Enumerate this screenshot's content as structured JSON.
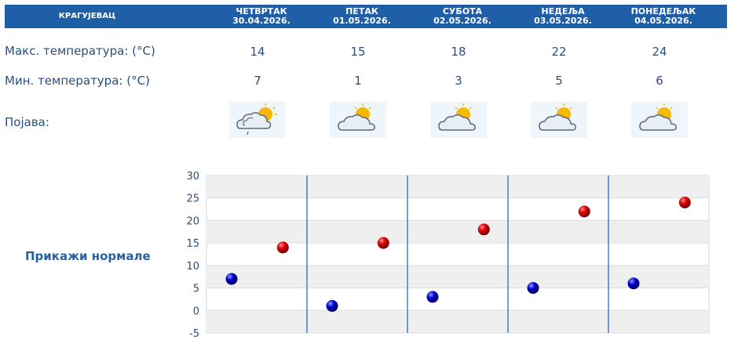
{
  "header": {
    "city": "КРАГУЈЕВАЦ",
    "days": [
      {
        "name": "ЧЕТВРТАК",
        "date": "30.04.2026."
      },
      {
        "name": "ПЕТАК",
        "date": "01.05.2026."
      },
      {
        "name": "СУБОТА",
        "date": "02.05.2026."
      },
      {
        "name": "НЕДЕЉА",
        "date": "03.05.2026."
      },
      {
        "name": "ПОНЕДЕЉАК",
        "date": "04.05.2026."
      }
    ]
  },
  "rows": {
    "max_label": "Макс. температура: (°C)",
    "min_label": "Мин. температура: (°C)",
    "phenomenon_label": "Појава:"
  },
  "icons": [
    "partly-cloudy-rain-icon",
    "partly-cloudy-icon",
    "partly-cloudy-icon",
    "partly-cloudy-icon",
    "partly-cloudy-icon"
  ],
  "show_normals_link": "Прикажи нормале",
  "colors": {
    "header": "#1f5fa8",
    "max": "#cc0000",
    "min": "#0000bb",
    "separator": "#1f5fa8"
  },
  "chart_data": {
    "type": "scatter",
    "categories": [
      "30.04.2026.",
      "01.05.2026.",
      "02.05.2026.",
      "03.05.2026.",
      "04.05.2026."
    ],
    "series": [
      {
        "values": [
          14,
          15,
          18,
          22,
          24
        ]
      },
      {
        "values": [
          7,
          1,
          3,
          5,
          6
        ]
      }
    ],
    "ylim": [
      -5,
      30
    ],
    "yticks": [
      -5,
      0,
      5,
      10,
      15,
      20,
      25,
      30
    ],
    "grid": true
  }
}
